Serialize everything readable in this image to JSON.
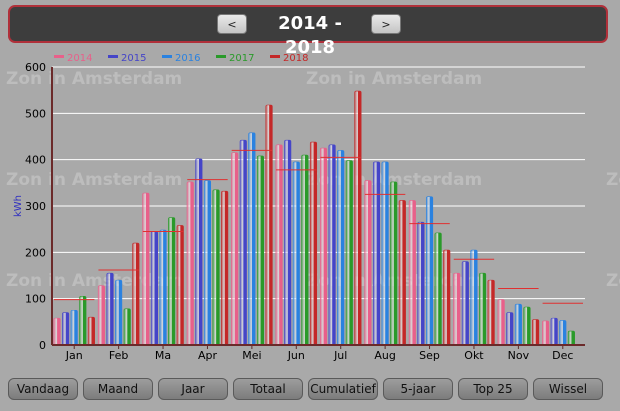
{
  "header": {
    "title": "2014 - 2018",
    "prev_label": "<",
    "next_label": ">"
  },
  "watermark": "Zon in Amsterdam",
  "buttons": [
    "Vandaag",
    "Maand",
    "Jaar",
    "Totaal",
    "Cumulatief",
    "5-jaar",
    "Top 25",
    "Wissel"
  ],
  "colors": {
    "background": "#a9a9a9",
    "header_bg": "#3d3d3d",
    "header_border": "#b0303a",
    "average_line": "#e03030"
  },
  "chart_data": {
    "type": "bar",
    "ylabel": "kWh",
    "ylim": [
      0,
      600
    ],
    "yticks": [
      0,
      100,
      200,
      300,
      400,
      500,
      600
    ],
    "grid": true,
    "legend_position": "top-left",
    "categories": [
      "Jan",
      "Feb",
      "Ma",
      "Apr",
      "Mei",
      "Jun",
      "Jul",
      "Aug",
      "Sep",
      "Okt",
      "Nov",
      "Dec"
    ],
    "series": [
      {
        "name": "2014",
        "color": "#e8608a",
        "values": [
          58,
          128,
          328,
          352,
          415,
          432,
          425,
          355,
          312,
          155,
          98,
          52
        ]
      },
      {
        "name": "2015",
        "color": "#4545c8",
        "values": [
          70,
          155,
          245,
          402,
          442,
          442,
          432,
          395,
          265,
          180,
          70,
          58
        ]
      },
      {
        "name": "2016",
        "color": "#2a82e0",
        "values": [
          75,
          140,
          248,
          355,
          458,
          395,
          420,
          395,
          320,
          205,
          88,
          53
        ]
      },
      {
        "name": "2017",
        "color": "#2a9a2a",
        "values": [
          105,
          78,
          275,
          335,
          408,
          410,
          398,
          352,
          242,
          155,
          82,
          30
        ]
      },
      {
        "name": "2018",
        "color": "#c42828",
        "values": [
          60,
          220,
          258,
          332,
          518,
          438,
          548,
          312,
          205,
          140,
          55,
          0
        ]
      }
    ],
    "averages": [
      98,
      162,
      245,
      357,
      420,
      378,
      405,
      325,
      262,
      185,
      122,
      90
    ]
  }
}
